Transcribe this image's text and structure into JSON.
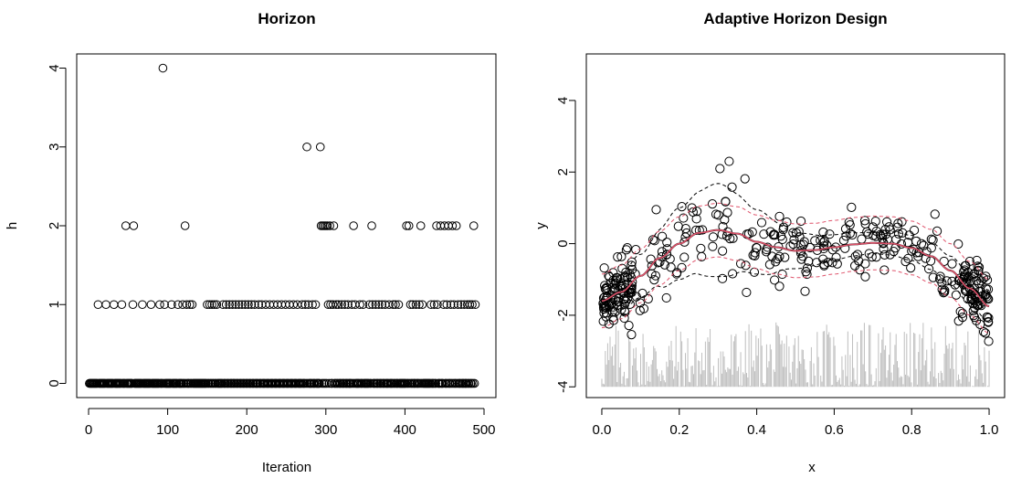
{
  "chart_data": [
    {
      "type": "scatter",
      "title": "Horizon",
      "xlabel": "Iteration",
      "ylabel": "h",
      "xlim": [
        -15,
        515
      ],
      "ylim": [
        -0.18,
        4.18
      ],
      "xticks": [
        "0",
        "100",
        "200",
        "300",
        "400",
        "500"
      ],
      "yticks": [
        "0",
        "1",
        "2",
        "3",
        "4"
      ],
      "grid": false,
      "marker": "open-circle",
      "n_iterations": 489,
      "series": [
        {
          "x_h4": [
            94
          ],
          "x_h3": [
            276,
            293
          ],
          "x_h2": [
            47,
            57,
            122,
            294,
            296,
            298,
            300,
            302,
            305,
            310,
            335,
            358,
            402,
            405,
            420,
            440,
            445,
            450,
            455,
            460,
            465,
            487
          ],
          "x_h1": [
            12,
            22,
            32,
            42,
            47,
            56,
            68,
            79,
            90,
            96,
            105,
            113,
            119,
            124,
            128,
            131,
            150,
            153,
            156,
            159,
            162,
            170,
            174,
            178,
            182,
            186,
            190,
            194,
            198,
            202,
            206,
            210,
            215,
            219,
            224,
            229,
            234,
            239,
            244,
            249,
            254,
            259,
            264,
            270,
            274,
            278,
            283,
            287,
            303,
            306,
            309,
            313,
            316,
            320,
            324,
            328,
            333,
            337,
            343,
            347,
            355,
            359,
            363,
            367,
            371,
            375,
            380,
            385,
            388,
            392,
            407,
            410,
            414,
            418,
            422,
            433,
            437,
            441,
            445,
            449,
            453,
            458,
            462,
            467,
            471,
            475,
            479,
            482,
            485,
            489
          ],
          "rest": "0"
        }
      ]
    },
    {
      "type": "scatter",
      "title": "Adaptive Horizon Design",
      "xlabel": "x",
      "ylabel": "y",
      "xlim": [
        -0.04,
        1.04
      ],
      "ylim": [
        -4.3,
        5.3
      ],
      "xticks": [
        "0.0",
        "0.2",
        "0.4",
        "0.6",
        "0.8",
        "1.0"
      ],
      "yticks": [
        "-4",
        "-2",
        "0",
        "2",
        "4"
      ],
      "grid": false,
      "colors": {
        "points": "#000000",
        "fit": "#df536b",
        "true_bands": "#df536b",
        "model_bands": "#000000",
        "design_bars": "#bebebe"
      },
      "fitted_mean_knots": {
        "x": [
          0.0,
          0.05,
          0.1,
          0.15,
          0.2,
          0.25,
          0.3,
          0.35,
          0.4,
          0.45,
          0.5,
          0.55,
          0.6,
          0.65,
          0.7,
          0.75,
          0.8,
          0.85,
          0.9,
          0.95,
          1.0
        ],
        "y": [
          -1.6,
          -1.35,
          -0.9,
          -0.4,
          0.0,
          0.3,
          0.38,
          0.28,
          0.05,
          -0.1,
          -0.2,
          -0.18,
          -0.1,
          -0.02,
          0.02,
          0.0,
          -0.12,
          -0.35,
          -0.75,
          -1.25,
          -1.75
        ]
      },
      "model_band_halfwidth_knots": {
        "x": [
          0.0,
          0.1,
          0.2,
          0.3,
          0.4,
          0.5,
          0.6,
          0.7,
          0.8,
          0.9,
          1.0
        ],
        "y": [
          0.35,
          0.6,
          1.0,
          1.3,
          0.9,
          0.5,
          0.35,
          0.3,
          0.35,
          0.4,
          0.45
        ]
      },
      "true_band_halfwidth": 0.75,
      "n_points": 430,
      "design_bar_baseline": -4.0,
      "design_bar_max_height": 1.8
    }
  ]
}
